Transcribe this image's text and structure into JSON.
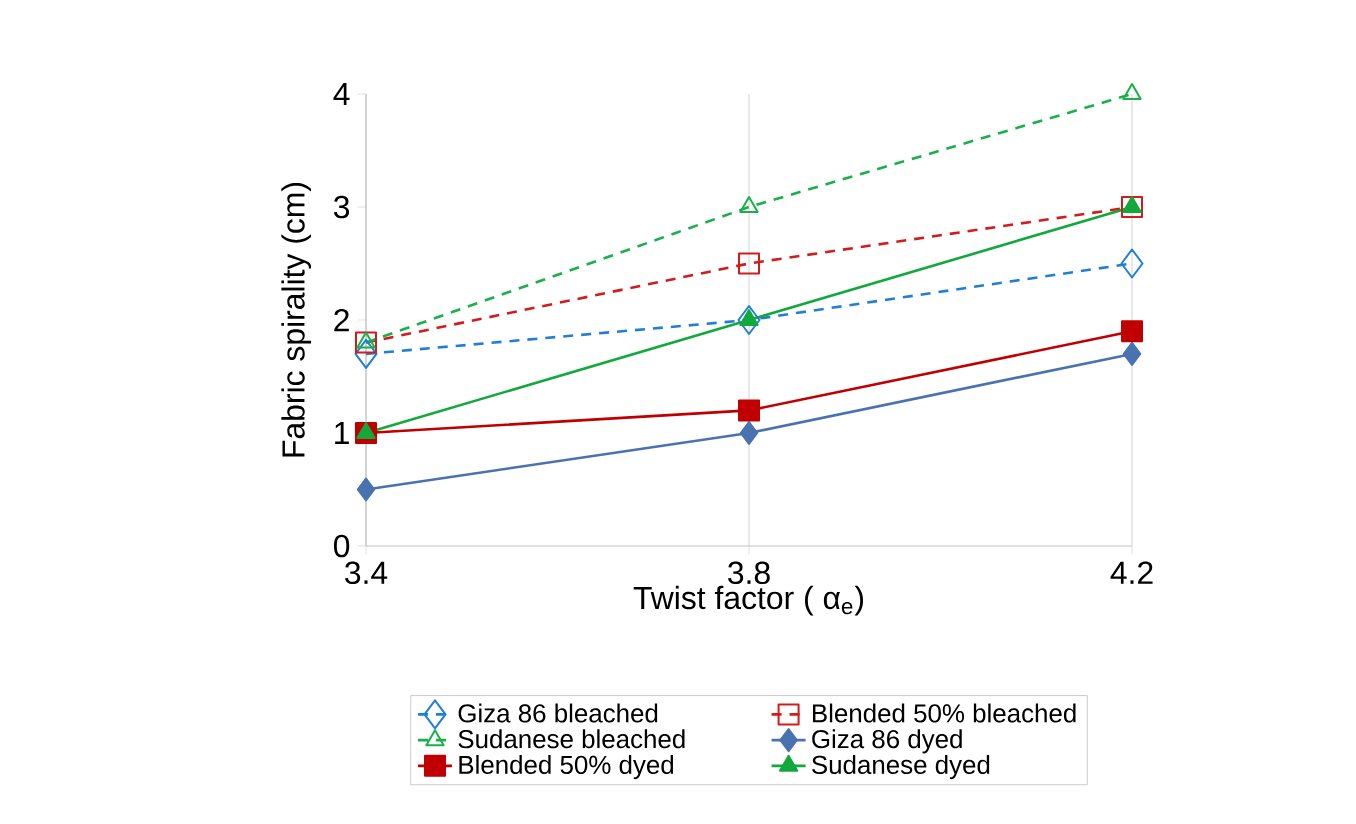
{
  "chart_data": {
    "type": "line",
    "xlabel": "Twist factor ( α$_{e}$)",
    "ylabel": "Fabric spirality (cm)",
    "x": [
      3.4,
      3.8,
      4.2
    ],
    "xlim": [
      3.4,
      4.2
    ],
    "xticks": [
      3.4,
      3.8,
      4.2
    ],
    "ylim": [
      0,
      4
    ],
    "yticks": [
      0,
      1,
      2,
      3,
      4
    ],
    "grid": "x",
    "legend": "bottom",
    "series": [
      {
        "name": "Giza  86 bleached",
        "color": "#1f7fd6",
        "values": [
          1.7,
          2.0,
          2.5
        ],
        "marker": "diamond",
        "line_style": "dashed"
      },
      {
        "name": "Blended 50% bleached",
        "color": "#d01c1c",
        "values": [
          1.8,
          2.5,
          3.0
        ],
        "marker": "square",
        "line_style": "dashed"
      },
      {
        "name": "Sudanese bleached",
        "color": "#19b04a",
        "values": [
          1.8,
          3.0,
          4.0
        ],
        "marker": "triangle",
        "line_style": "dashed"
      },
      {
        "name": "Giza  86 dyed",
        "color": "#4a72b0",
        "values": [
          0.5,
          1.0,
          1.7
        ],
        "marker": "diamond",
        "line_style": "solid"
      },
      {
        "name": "Blended 50% dyed",
        "color": "#c00000",
        "values": [
          1.0,
          1.2,
          1.9
        ],
        "marker": "square",
        "line_style": "solid"
      },
      {
        "name": "Sudanese dyed",
        "color": "#12a83c",
        "values": [
          1.0,
          2.0,
          3.0
        ],
        "marker": "triangle",
        "line_style": "solid"
      }
    ]
  }
}
